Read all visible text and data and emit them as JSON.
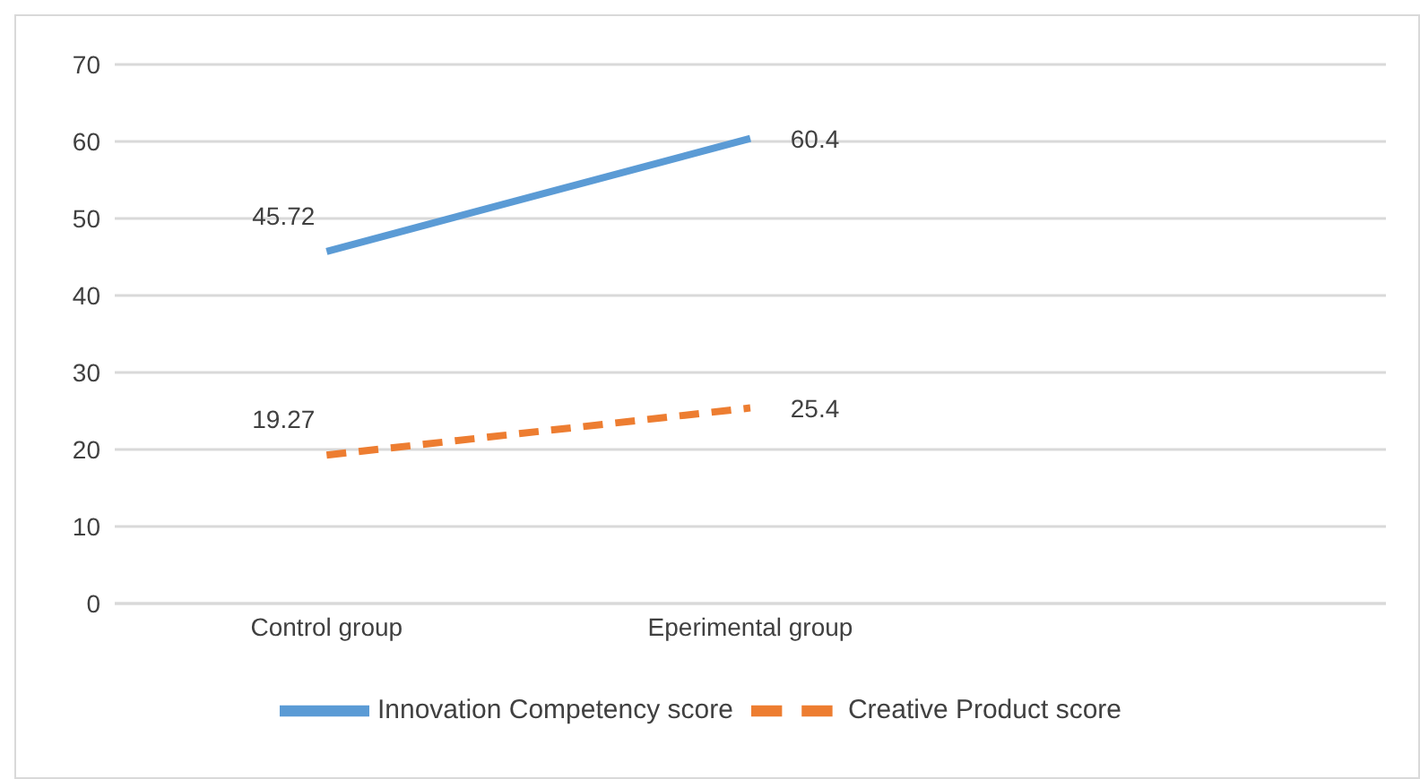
{
  "chart_data": {
    "type": "line",
    "categories": [
      "Control group",
      "Eperimental group",
      null
    ],
    "series": [
      {
        "name": "Innovation Competency score",
        "color": "#5b9bd5",
        "values": [
          45.72,
          60.4,
          null
        ],
        "line_style": "solid"
      },
      {
        "name": "Creative Product score",
        "color": "#ed7d31",
        "values": [
          19.27,
          25.4,
          null
        ],
        "line_style": "dashed"
      }
    ],
    "ylim": [
      0,
      70
    ],
    "yticks": [
      0,
      10,
      20,
      30,
      40,
      50,
      60,
      70
    ],
    "grid": "y",
    "legend": "bottom",
    "marker": "none",
    "data_labels": true
  }
}
